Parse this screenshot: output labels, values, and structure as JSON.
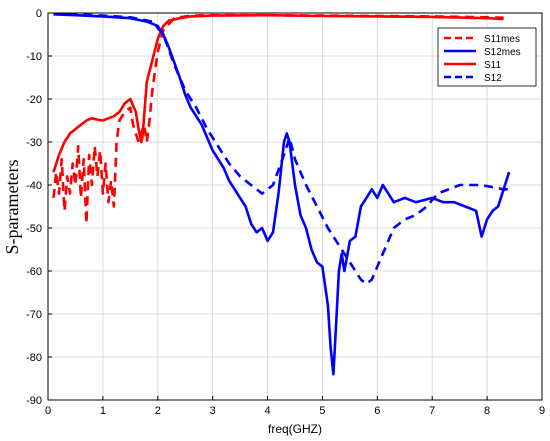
{
  "chart_data": {
    "type": "line",
    "title": "",
    "xlabel": "freq(GHZ)",
    "ylabel": "S-parameters",
    "xlim": [
      0,
      9
    ],
    "ylim": [
      -90,
      0
    ],
    "xticks": [
      0,
      1,
      2,
      3,
      4,
      5,
      6,
      7,
      8,
      9
    ],
    "yticks": [
      0,
      -10,
      -20,
      -30,
      -40,
      -50,
      -60,
      -70,
      -80,
      -90
    ],
    "grid": true,
    "legend_position": "top-right",
    "series": [
      {
        "name": "S11mes",
        "color": "#ff0000",
        "dash": true,
        "points": [
          [
            0.1,
            -43
          ],
          [
            0.15,
            -37
          ],
          [
            0.2,
            -42
          ],
          [
            0.25,
            -34
          ],
          [
            0.3,
            -46
          ],
          [
            0.35,
            -38
          ],
          [
            0.4,
            -42
          ],
          [
            0.45,
            -35
          ],
          [
            0.5,
            -40
          ],
          [
            0.55,
            -31
          ],
          [
            0.6,
            -43
          ],
          [
            0.65,
            -34
          ],
          [
            0.7,
            -49
          ],
          [
            0.75,
            -33
          ],
          [
            0.8,
            -40
          ],
          [
            0.85,
            -31
          ],
          [
            0.9,
            -38
          ],
          [
            0.95,
            -32
          ],
          [
            1.0,
            -42
          ],
          [
            1.05,
            -35
          ],
          [
            1.1,
            -44
          ],
          [
            1.15,
            -39
          ],
          [
            1.2,
            -45
          ],
          [
            1.25,
            -30
          ],
          [
            1.3,
            -25
          ],
          [
            1.4,
            -23
          ],
          [
            1.5,
            -22
          ],
          [
            1.55,
            -26
          ],
          [
            1.6,
            -28
          ],
          [
            1.65,
            -30
          ],
          [
            1.7,
            -28
          ],
          [
            1.75,
            -26
          ],
          [
            1.8,
            -30
          ],
          [
            1.85,
            -25
          ],
          [
            1.9,
            -18
          ],
          [
            2.0,
            -9
          ],
          [
            2.1,
            -4
          ],
          [
            2.3,
            -1.2
          ],
          [
            2.6,
            -0.6
          ],
          [
            3.0,
            -0.5
          ],
          [
            4.0,
            -0.5
          ],
          [
            5.0,
            -0.6
          ],
          [
            6.0,
            -0.7
          ],
          [
            7.0,
            -0.8
          ],
          [
            8.0,
            -1.0
          ],
          [
            8.3,
            -1.1
          ]
        ]
      },
      {
        "name": "S12mes",
        "color": "#0000ff",
        "dash": false,
        "points": [
          [
            0.1,
            -0.3
          ],
          [
            0.5,
            -0.5
          ],
          [
            1.0,
            -0.8
          ],
          [
            1.5,
            -1.2
          ],
          [
            1.8,
            -2.0
          ],
          [
            2.0,
            -3
          ],
          [
            2.1,
            -5
          ],
          [
            2.2,
            -8
          ],
          [
            2.4,
            -15
          ],
          [
            2.5,
            -19
          ],
          [
            2.6,
            -22
          ],
          [
            2.7,
            -24
          ],
          [
            2.8,
            -26
          ],
          [
            2.9,
            -29
          ],
          [
            3.0,
            -32
          ],
          [
            3.1,
            -34
          ],
          [
            3.2,
            -36
          ],
          [
            3.3,
            -39
          ],
          [
            3.4,
            -41
          ],
          [
            3.5,
            -43
          ],
          [
            3.6,
            -45
          ],
          [
            3.7,
            -49
          ],
          [
            3.8,
            -51
          ],
          [
            3.9,
            -50
          ],
          [
            4.0,
            -53
          ],
          [
            4.1,
            -51
          ],
          [
            4.2,
            -42
          ],
          [
            4.3,
            -30
          ],
          [
            4.35,
            -28
          ],
          [
            4.4,
            -30
          ],
          [
            4.5,
            -40
          ],
          [
            4.6,
            -47
          ],
          [
            4.7,
            -50
          ],
          [
            4.8,
            -55
          ],
          [
            4.9,
            -58
          ],
          [
            5.0,
            -59
          ],
          [
            5.1,
            -68
          ],
          [
            5.15,
            -78
          ],
          [
            5.2,
            -84
          ],
          [
            5.25,
            -72
          ],
          [
            5.3,
            -60
          ],
          [
            5.35,
            -56
          ],
          [
            5.4,
            -60
          ],
          [
            5.5,
            -53
          ],
          [
            5.6,
            -52
          ],
          [
            5.7,
            -45
          ],
          [
            5.8,
            -43
          ],
          [
            5.9,
            -41
          ],
          [
            6.0,
            -43
          ],
          [
            6.1,
            -40
          ],
          [
            6.2,
            -42
          ],
          [
            6.3,
            -44
          ],
          [
            6.5,
            -43
          ],
          [
            6.7,
            -44
          ],
          [
            7.0,
            -43
          ],
          [
            7.2,
            -44
          ],
          [
            7.4,
            -44
          ],
          [
            7.6,
            -45
          ],
          [
            7.8,
            -46
          ],
          [
            7.9,
            -52
          ],
          [
            8.0,
            -48
          ],
          [
            8.1,
            -46
          ],
          [
            8.2,
            -45
          ],
          [
            8.3,
            -41
          ],
          [
            8.4,
            -37
          ]
        ]
      },
      {
        "name": "S11",
        "color": "#ff0000",
        "dash": false,
        "points": [
          [
            0.1,
            -37
          ],
          [
            0.2,
            -33
          ],
          [
            0.3,
            -30
          ],
          [
            0.4,
            -28
          ],
          [
            0.5,
            -27
          ],
          [
            0.6,
            -26
          ],
          [
            0.7,
            -25
          ],
          [
            0.8,
            -24.5
          ],
          [
            0.9,
            -24.8
          ],
          [
            1.0,
            -25
          ],
          [
            1.1,
            -24.5
          ],
          [
            1.2,
            -24
          ],
          [
            1.3,
            -23
          ],
          [
            1.4,
            -21
          ],
          [
            1.5,
            -20
          ],
          [
            1.6,
            -23
          ],
          [
            1.65,
            -27
          ],
          [
            1.7,
            -30
          ],
          [
            1.72,
            -29
          ],
          [
            1.75,
            -24
          ],
          [
            1.8,
            -16
          ],
          [
            1.9,
            -11
          ],
          [
            2.0,
            -6
          ],
          [
            2.1,
            -3
          ],
          [
            2.2,
            -1.8
          ],
          [
            2.4,
            -1.2
          ],
          [
            2.6,
            -0.8
          ],
          [
            3.0,
            -0.6
          ],
          [
            4.0,
            -0.5
          ],
          [
            5.0,
            -0.7
          ],
          [
            6.0,
            -0.8
          ],
          [
            7.0,
            -0.9
          ],
          [
            8.0,
            -1.2
          ],
          [
            8.3,
            -1.4
          ]
        ]
      },
      {
        "name": "S12",
        "color": "#0000ff",
        "dash": true,
        "points": [
          [
            0.1,
            -0.1
          ],
          [
            0.5,
            -0.3
          ],
          [
            1.0,
            -0.6
          ],
          [
            1.5,
            -1.0
          ],
          [
            1.9,
            -2
          ],
          [
            2.1,
            -5
          ],
          [
            2.3,
            -12
          ],
          [
            2.5,
            -18
          ],
          [
            2.7,
            -22
          ],
          [
            2.9,
            -27
          ],
          [
            3.1,
            -31
          ],
          [
            3.3,
            -35
          ],
          [
            3.5,
            -38
          ],
          [
            3.7,
            -40
          ],
          [
            3.9,
            -42
          ],
          [
            4.1,
            -40
          ],
          [
            4.3,
            -33
          ],
          [
            4.4,
            -29
          ],
          [
            4.5,
            -34
          ],
          [
            4.7,
            -40
          ],
          [
            4.9,
            -45
          ],
          [
            5.1,
            -50
          ],
          [
            5.3,
            -54
          ],
          [
            5.5,
            -58
          ],
          [
            5.7,
            -62
          ],
          [
            5.8,
            -63
          ],
          [
            5.9,
            -62
          ],
          [
            6.1,
            -56
          ],
          [
            6.3,
            -50
          ],
          [
            6.5,
            -48
          ],
          [
            6.7,
            -47
          ],
          [
            6.9,
            -45
          ],
          [
            7.1,
            -42
          ],
          [
            7.3,
            -41
          ],
          [
            7.5,
            -40
          ],
          [
            7.7,
            -40
          ],
          [
            7.9,
            -40
          ],
          [
            8.1,
            -40.5
          ],
          [
            8.3,
            -41
          ],
          [
            8.4,
            -41
          ]
        ]
      }
    ]
  }
}
